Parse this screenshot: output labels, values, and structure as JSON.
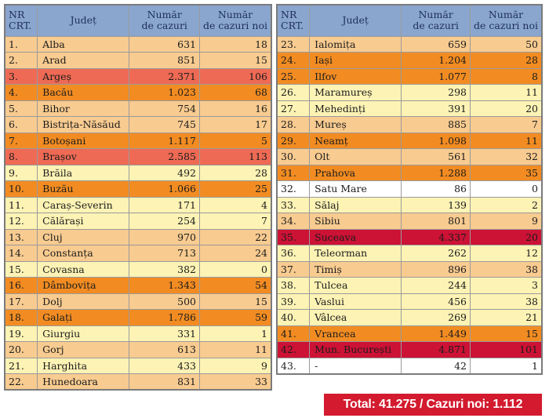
{
  "headers": {
    "nr": "NR\nCRT.",
    "judet": "Județ",
    "cazuri": "Număr\nde cazuri",
    "noi": "Număr\nde cazuri noi"
  },
  "colors": {
    "pale": "#fdf3b5",
    "light": "#f8cb90",
    "orange": "#f28c22",
    "salmon": "#ef6a54",
    "red": "#cc1235",
    "white": "#ffffff"
  },
  "left_rows": [
    {
      "nr": "1.",
      "judet": "Alba",
      "cazuri": "631",
      "noi": "18",
      "color": "light"
    },
    {
      "nr": "2.",
      "judet": "Arad",
      "cazuri": "851",
      "noi": "15",
      "color": "light"
    },
    {
      "nr": "3.",
      "judet": "Argeș",
      "cazuri": "2.371",
      "noi": "106",
      "color": "salmon"
    },
    {
      "nr": "4.",
      "judet": "Bacău",
      "cazuri": "1.023",
      "noi": "68",
      "color": "orange"
    },
    {
      "nr": "5.",
      "judet": "Bihor",
      "cazuri": "754",
      "noi": "16",
      "color": "light"
    },
    {
      "nr": "6.",
      "judet": "Bistrița-Năsăud",
      "cazuri": "745",
      "noi": "17",
      "color": "light"
    },
    {
      "nr": "7.",
      "judet": "Botoșani",
      "cazuri": "1.117",
      "noi": "5",
      "color": "orange"
    },
    {
      "nr": "8.",
      "judet": "Brașov",
      "cazuri": "2.585",
      "noi": "113",
      "color": "salmon"
    },
    {
      "nr": "9.",
      "judet": "Brăila",
      "cazuri": "492",
      "noi": "28",
      "color": "pale"
    },
    {
      "nr": "10.",
      "judet": "Buzău",
      "cazuri": "1.066",
      "noi": "25",
      "color": "orange"
    },
    {
      "nr": "11.",
      "judet": "Caraș-Severin",
      "cazuri": "171",
      "noi": "4",
      "color": "pale"
    },
    {
      "nr": "12.",
      "judet": "Călărași",
      "cazuri": "254",
      "noi": "7",
      "color": "pale"
    },
    {
      "nr": "13.",
      "judet": "Cluj",
      "cazuri": "970",
      "noi": "22",
      "color": "light"
    },
    {
      "nr": "14.",
      "judet": "Constanța",
      "cazuri": "713",
      "noi": "24",
      "color": "light"
    },
    {
      "nr": "15.",
      "judet": "Covasna",
      "cazuri": "382",
      "noi": "0",
      "color": "pale"
    },
    {
      "nr": "16.",
      "judet": "Dâmbovița",
      "cazuri": "1.343",
      "noi": "54",
      "color": "orange"
    },
    {
      "nr": "17.",
      "judet": "Dolj",
      "cazuri": "500",
      "noi": "15",
      "color": "light"
    },
    {
      "nr": "18.",
      "judet": "Galați",
      "cazuri": "1.786",
      "noi": "59",
      "color": "orange"
    },
    {
      "nr": "19.",
      "judet": "Giurgiu",
      "cazuri": "331",
      "noi": "1",
      "color": "pale"
    },
    {
      "nr": "20.",
      "judet": "Gorj",
      "cazuri": "613",
      "noi": "11",
      "color": "light"
    },
    {
      "nr": "21.",
      "judet": "Harghita",
      "cazuri": "433",
      "noi": "9",
      "color": "pale"
    },
    {
      "nr": "22.",
      "judet": "Hunedoara",
      "cazuri": "831",
      "noi": "33",
      "color": "light"
    }
  ],
  "right_rows": [
    {
      "nr": "23.",
      "judet": "Ialomița",
      "cazuri": "659",
      "noi": "50",
      "color": "light"
    },
    {
      "nr": "24.",
      "judet": "Iași",
      "cazuri": "1.204",
      "noi": "28",
      "color": "orange"
    },
    {
      "nr": "25.",
      "judet": "Ilfov",
      "cazuri": "1.077",
      "noi": "8",
      "color": "orange"
    },
    {
      "nr": "26.",
      "judet": "Maramureș",
      "cazuri": "298",
      "noi": "11",
      "color": "pale"
    },
    {
      "nr": "27.",
      "judet": "Mehedinți",
      "cazuri": "391",
      "noi": "20",
      "color": "pale"
    },
    {
      "nr": "28.",
      "judet": "Mureș",
      "cazuri": "885",
      "noi": "7",
      "color": "light"
    },
    {
      "nr": "29.",
      "judet": "Neamț",
      "cazuri": "1.098",
      "noi": "11",
      "color": "orange"
    },
    {
      "nr": "30.",
      "judet": "Olt",
      "cazuri": "561",
      "noi": "32",
      "color": "light"
    },
    {
      "nr": "31.",
      "judet": "Prahova",
      "cazuri": "1.288",
      "noi": "35",
      "color": "orange"
    },
    {
      "nr": "32.",
      "judet": "Satu Mare",
      "cazuri": "86",
      "noi": "0",
      "color": "white"
    },
    {
      "nr": "33.",
      "judet": "Sălaj",
      "cazuri": "139",
      "noi": "2",
      "color": "pale"
    },
    {
      "nr": "34.",
      "judet": "Sibiu",
      "cazuri": "801",
      "noi": "9",
      "color": "light"
    },
    {
      "nr": "35.",
      "judet": "Suceava",
      "cazuri": "4.337",
      "noi": "20",
      "color": "red"
    },
    {
      "nr": "36.",
      "judet": "Teleorman",
      "cazuri": "262",
      "noi": "12",
      "color": "pale"
    },
    {
      "nr": "37.",
      "judet": "Timiș",
      "cazuri": "896",
      "noi": "38",
      "color": "light"
    },
    {
      "nr": "38.",
      "judet": "Tulcea",
      "cazuri": "244",
      "noi": "3",
      "color": "pale"
    },
    {
      "nr": "39.",
      "judet": "Vaslui",
      "cazuri": "456",
      "noi": "38",
      "color": "pale"
    },
    {
      "nr": "40.",
      "judet": "Vâlcea",
      "cazuri": "269",
      "noi": "21",
      "color": "pale"
    },
    {
      "nr": "41.",
      "judet": "Vrancea",
      "cazuri": "1.449",
      "noi": "15",
      "color": "orange"
    },
    {
      "nr": "42.",
      "judet": "Mun. București",
      "cazuri": "4.871",
      "noi": "101",
      "color": "red"
    },
    {
      "nr": "43.",
      "judet": "-",
      "cazuri": "42",
      "noi": "1",
      "color": "white"
    }
  ],
  "total_label": "Total: 41.275 / Cazuri noi: 1.112"
}
